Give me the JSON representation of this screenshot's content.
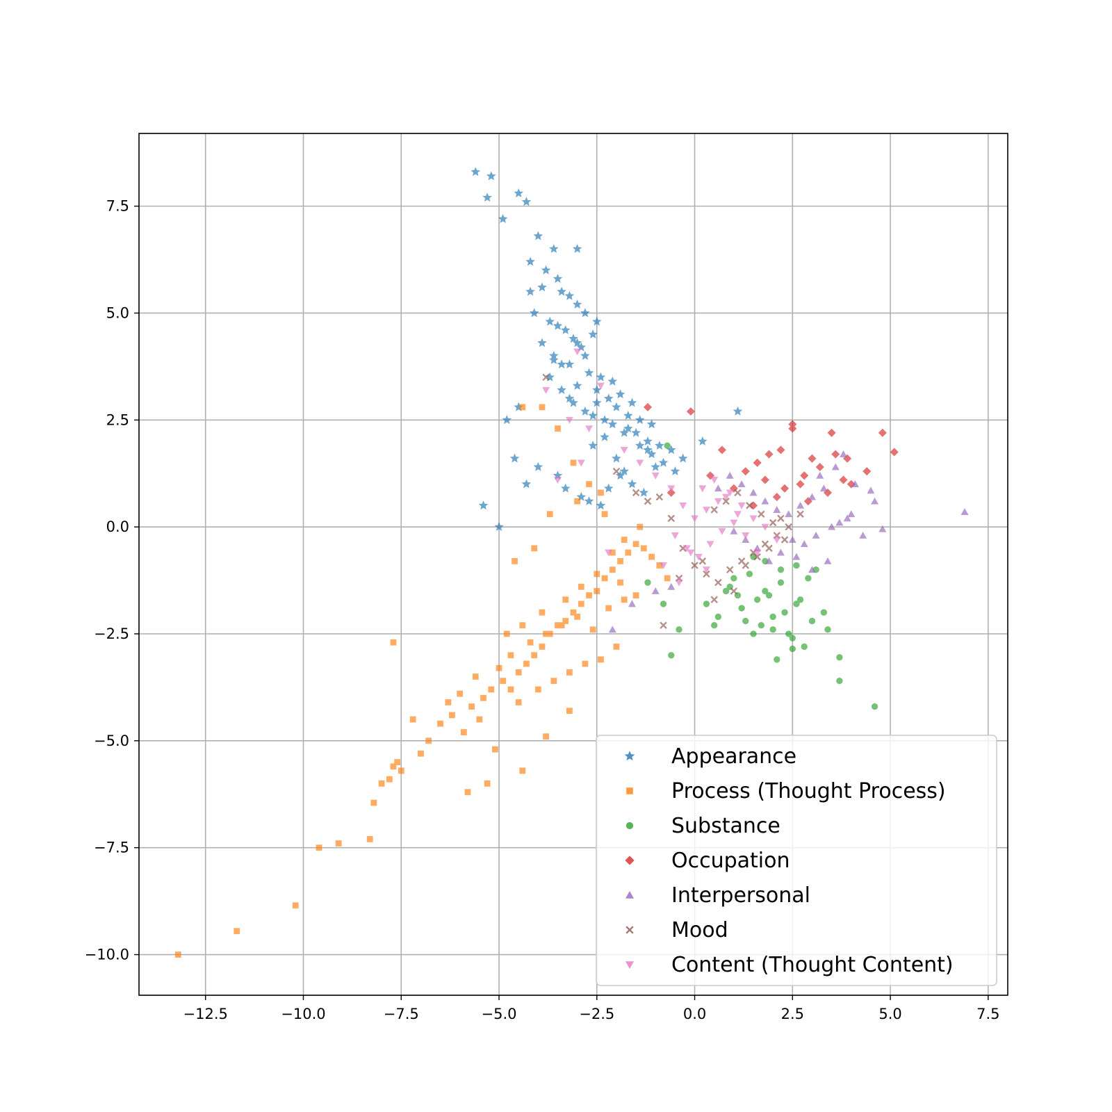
{
  "chart_data": {
    "type": "scatter",
    "title": "",
    "xlabel": "",
    "ylabel": "",
    "xlim": [
      -14.2,
      8.0
    ],
    "ylim": [
      -10.95,
      9.2
    ],
    "grid": true,
    "legend_position": "lower-right",
    "x_ticks": [
      -12.5,
      -10.0,
      -7.5,
      -5.0,
      -2.5,
      0.0,
      2.5,
      5.0,
      7.5
    ],
    "y_ticks": [
      -10.0,
      -7.5,
      -5.0,
      -2.5,
      0.0,
      2.5,
      5.0,
      7.5
    ],
    "x_tick_labels": [
      "−12.5",
      "−10.0",
      "−7.5",
      "−5.0",
      "−2.5",
      "0.0",
      "2.5",
      "5.0",
      "7.5"
    ],
    "y_tick_labels": [
      "−10.0",
      "−7.5",
      "−5.0",
      "−2.5",
      "0.0",
      "2.5",
      "5.0",
      "7.5"
    ],
    "series": [
      {
        "name": "Appearance",
        "marker": "star",
        "color": "#1f77b4",
        "x": [
          -5.6,
          -5.2,
          -5.3,
          -4.5,
          -4.3,
          -4.9,
          -4.0,
          -3.6,
          -3.0,
          -4.2,
          -3.8,
          -3.5,
          -3.2,
          -3.0,
          -2.8,
          -3.4,
          -3.9,
          -4.1,
          -3.7,
          -3.3,
          -3.1,
          -2.6,
          -2.9,
          -3.6,
          -3.2,
          -2.7,
          -2.4,
          -2.1,
          -2.5,
          -2.2,
          -1.9,
          -1.6,
          -2.0,
          -1.7,
          -1.4,
          -1.1,
          -1.5,
          -1.2,
          -0.9,
          -0.6,
          -0.3,
          0.2,
          1.1,
          -2.3,
          -2.8,
          -3.1,
          -3.4,
          -3.7,
          -2.6,
          -2.0,
          -1.8,
          -4.5,
          -4.8,
          -5.0,
          -5.4,
          -4.6,
          -4.3,
          -4.0,
          -3.5,
          -3.3,
          -2.9,
          -2.7,
          -2.4,
          -2.2,
          -1.9,
          -1.6,
          -1.3,
          -1.0,
          -2.5,
          -3.0,
          -3.6,
          -4.2,
          -3.9,
          -3.4,
          -3.0,
          -2.5,
          -2.1,
          -1.8,
          -1.4,
          -1.1,
          -0.8,
          -0.5,
          -2.8,
          -3.2,
          -2.3,
          -1.7,
          -1.2,
          -2.6,
          -3.5
        ],
        "y": [
          8.3,
          8.2,
          7.7,
          7.8,
          7.6,
          7.2,
          6.8,
          6.5,
          6.5,
          6.2,
          6.0,
          5.8,
          5.4,
          5.2,
          5.0,
          5.5,
          5.6,
          5.0,
          4.8,
          4.6,
          4.4,
          4.5,
          4.2,
          4.0,
          3.8,
          3.6,
          3.5,
          3.4,
          3.2,
          3.0,
          3.1,
          2.9,
          2.8,
          2.6,
          2.5,
          2.4,
          2.2,
          2.0,
          1.9,
          1.8,
          1.6,
          2.0,
          2.7,
          2.5,
          2.7,
          2.9,
          3.2,
          3.5,
          1.9,
          1.6,
          1.3,
          2.8,
          2.5,
          0.0,
          0.5,
          1.6,
          1.0,
          1.4,
          1.2,
          0.9,
          0.7,
          0.6,
          0.5,
          0.9,
          1.2,
          1.0,
          0.8,
          1.4,
          4.8,
          4.3,
          3.9,
          5.5,
          4.3,
          3.8,
          3.3,
          2.9,
          2.4,
          2.2,
          1.9,
          1.7,
          1.5,
          1.3,
          4.0,
          3.0,
          2.1,
          2.3,
          1.8,
          2.6,
          4.7
        ]
      },
      {
        "name": "Process (Thought Process)",
        "marker": "square",
        "color": "#ff7f0e",
        "x": [
          -13.2,
          -11.7,
          -10.2,
          -9.6,
          -9.1,
          -8.3,
          -8.2,
          -8.0,
          -7.8,
          -7.7,
          -7.6,
          -7.5,
          -7.7,
          -7.0,
          -6.8,
          -6.5,
          -6.2,
          -5.9,
          -5.7,
          -5.5,
          -5.4,
          -5.1,
          -4.9,
          -4.7,
          -4.5,
          -4.3,
          -4.1,
          -3.9,
          -3.7,
          -3.5,
          -3.3,
          -3.1,
          -2.9,
          -2.7,
          -2.5,
          -2.3,
          -2.1,
          -1.9,
          -1.7,
          -1.5,
          -1.3,
          -1.1,
          -0.9,
          -0.7,
          -5.0,
          -4.7,
          -4.2,
          -3.8,
          -3.4,
          -3.0,
          -2.6,
          -2.2,
          -1.8,
          -4.5,
          -4.0,
          -3.6,
          -3.2,
          -2.8,
          -2.4,
          -2.0,
          -6.3,
          -6.0,
          -5.6,
          -5.2,
          -4.8,
          -4.4,
          -3.9,
          -3.3,
          -2.9,
          -2.5,
          -2.1,
          -1.8,
          -1.4,
          -4.6,
          -4.1,
          -3.7,
          -3.0,
          -2.4,
          -3.9,
          -3.5,
          -3.1,
          -2.7,
          -2.3,
          -1.9,
          -1.5,
          -7.2,
          -5.8,
          -5.3,
          -4.4,
          -3.8,
          -3.2,
          -4.4
        ],
        "y": [
          -10.0,
          -9.45,
          -8.85,
          -7.5,
          -7.4,
          -7.3,
          -6.45,
          -6.0,
          -5.9,
          -5.6,
          -5.5,
          -5.7,
          -2.7,
          -5.3,
          -5.0,
          -4.6,
          -4.4,
          -4.8,
          -4.2,
          -4.5,
          -4.0,
          -5.2,
          -3.6,
          -3.8,
          -3.4,
          -3.2,
          -3.0,
          -2.8,
          -2.5,
          -2.3,
          -2.2,
          -2.0,
          -1.8,
          -1.6,
          -1.5,
          -1.2,
          -1.0,
          -0.8,
          -0.6,
          -0.4,
          -0.5,
          -0.7,
          -0.9,
          -1.2,
          -3.3,
          -3.0,
          -2.7,
          -2.5,
          -2.3,
          -2.1,
          -2.4,
          -1.9,
          -1.7,
          -4.1,
          -3.8,
          -3.6,
          -3.4,
          -3.2,
          -3.1,
          -2.8,
          -4.1,
          -3.9,
          -3.5,
          -3.8,
          -2.5,
          -2.3,
          -2.0,
          -1.7,
          -1.4,
          -1.1,
          -0.6,
          -0.3,
          0.0,
          -0.8,
          -0.5,
          0.3,
          0.6,
          0.8,
          2.8,
          2.3,
          1.5,
          1.0,
          0.3,
          -1.3,
          -1.6,
          -4.5,
          -6.2,
          -6.0,
          -5.7,
          -4.9,
          -4.3,
          2.8
        ]
      },
      {
        "name": "Substance",
        "marker": "circle",
        "color": "#2ca02c",
        "x": [
          4.6,
          3.7,
          3.7,
          2.5,
          2.1,
          1.5,
          2.8,
          3.4,
          2.0,
          1.7,
          2.3,
          2.6,
          1.9,
          1.2,
          0.9,
          1.0,
          1.4,
          1.8,
          2.2,
          2.7,
          3.0,
          3.3,
          2.4,
          1.6,
          1.3,
          2.9,
          0.6,
          0.3,
          -0.4,
          -0.8,
          -0.6,
          -1.2,
          -0.7,
          0.5,
          1.1,
          2.0,
          2.5,
          3.1,
          1.8,
          2.2,
          2.6,
          1.5,
          0.8
        ],
        "y": [
          -4.2,
          -3.6,
          -3.05,
          -2.85,
          -3.1,
          -2.5,
          -2.8,
          -2.4,
          -2.1,
          -2.3,
          -2.0,
          -1.8,
          -1.6,
          -1.9,
          -1.4,
          -1.2,
          -1.1,
          -1.5,
          -1.3,
          -1.7,
          -2.2,
          -2.0,
          -2.5,
          -1.7,
          -2.2,
          -1.2,
          -2.1,
          -1.8,
          -2.4,
          -1.8,
          -3.0,
          -1.3,
          1.9,
          -2.3,
          -1.6,
          -2.4,
          -2.6,
          -1.0,
          -0.8,
          -1.0,
          -0.9,
          -0.7,
          -1.5
        ]
      },
      {
        "name": "Occupation",
        "marker": "diamond",
        "color": "#d62728",
        "x": [
          5.1,
          4.8,
          4.0,
          3.5,
          3.0,
          2.5,
          2.5,
          2.2,
          1.9,
          1.6,
          1.3,
          1.8,
          2.3,
          2.8,
          3.2,
          3.6,
          3.9,
          3.4,
          2.9,
          2.1,
          1.5,
          1.0,
          0.7,
          0.4,
          -0.1,
          -0.6,
          -1.2,
          3.8,
          4.4,
          2.7
        ],
        "y": [
          1.75,
          2.2,
          1.0,
          2.2,
          1.6,
          2.3,
          2.4,
          1.8,
          1.7,
          1.5,
          1.3,
          1.1,
          0.9,
          1.2,
          1.4,
          1.7,
          1.6,
          0.8,
          0.6,
          0.7,
          0.5,
          0.9,
          1.8,
          1.2,
          2.7,
          0.8,
          2.8,
          1.1,
          1.3,
          1.0
        ]
      },
      {
        "name": "Interpersonal",
        "marker": "triangle-up",
        "color": "#9467bd",
        "x": [
          6.9,
          4.6,
          4.8,
          4.5,
          4.1,
          3.8,
          3.6,
          3.3,
          3.0,
          2.7,
          2.4,
          2.1,
          1.8,
          1.5,
          1.2,
          0.9,
          0.6,
          3.9,
          3.5,
          3.1,
          2.8,
          2.5,
          2.2,
          1.9,
          1.6,
          1.3,
          1.0,
          3.4,
          3.0,
          2.6,
          4.3,
          4.0,
          3.7,
          3.2,
          -0.6,
          -1.0,
          -1.6,
          -2.1
        ],
        "y": [
          0.35,
          0.6,
          -0.05,
          0.85,
          1.0,
          1.7,
          1.4,
          0.9,
          0.7,
          0.5,
          0.3,
          0.4,
          0.6,
          0.8,
          1.0,
          1.2,
          0.9,
          0.2,
          0.0,
          -0.2,
          -0.4,
          -0.3,
          -0.6,
          -0.8,
          -0.5,
          -0.3,
          -0.1,
          -0.8,
          -1.0,
          -0.7,
          -0.2,
          0.3,
          0.1,
          1.2,
          -1.4,
          -1.5,
          -1.8,
          -2.4
        ]
      },
      {
        "name": "Mood",
        "marker": "x",
        "color": "#8c564b",
        "x": [
          -3.8,
          -2.0,
          -1.5,
          -1.2,
          -0.9,
          -0.6,
          -0.3,
          0.0,
          0.3,
          0.6,
          0.9,
          1.2,
          1.5,
          1.8,
          2.1,
          2.4,
          2.7,
          0.5,
          0.8,
          1.1,
          1.4,
          1.7,
          2.0,
          2.3,
          -0.8,
          -0.4,
          0.2,
          0.5,
          1.0,
          1.3,
          1.6,
          1.9,
          2.2
        ],
        "y": [
          3.5,
          1.3,
          0.8,
          0.6,
          0.7,
          0.2,
          -0.5,
          -0.9,
          -1.1,
          -1.3,
          -1.0,
          -0.8,
          -0.6,
          -0.4,
          -0.2,
          0.0,
          0.3,
          0.4,
          0.6,
          0.8,
          0.5,
          0.3,
          0.1,
          -0.3,
          -2.3,
          -1.2,
          -0.8,
          -1.7,
          -1.5,
          -0.9,
          -0.7,
          -0.5,
          0.2
        ]
      },
      {
        "name": "Content (Thought Content)",
        "marker": "triangle-down",
        "color": "#e377c2",
        "x": [
          -3.0,
          -3.8,
          -2.4,
          -2.7,
          -3.2,
          -1.8,
          -1.4,
          -1.0,
          -0.6,
          -0.3,
          0.0,
          0.3,
          0.6,
          0.9,
          1.2,
          1.5,
          1.8,
          2.1,
          -0.5,
          -0.2,
          0.1,
          0.4,
          0.7,
          1.0,
          1.3,
          1.6,
          0.2,
          0.5,
          0.8,
          1.1,
          -0.8,
          -0.4,
          -0.1,
          0.3,
          -3.5,
          -2.9,
          -2.2
        ],
        "y": [
          4.1,
          3.2,
          3.3,
          2.3,
          2.5,
          1.8,
          1.5,
          1.2,
          0.9,
          0.5,
          0.2,
          0.4,
          0.6,
          0.8,
          0.5,
          0.2,
          0.0,
          -0.3,
          -0.2,
          -0.5,
          -0.7,
          -0.4,
          -0.1,
          0.1,
          -0.2,
          -0.6,
          0.9,
          1.1,
          0.7,
          0.3,
          -0.9,
          -1.3,
          -0.6,
          -1.0,
          1.1,
          1.5,
          -0.6
        ]
      }
    ]
  }
}
